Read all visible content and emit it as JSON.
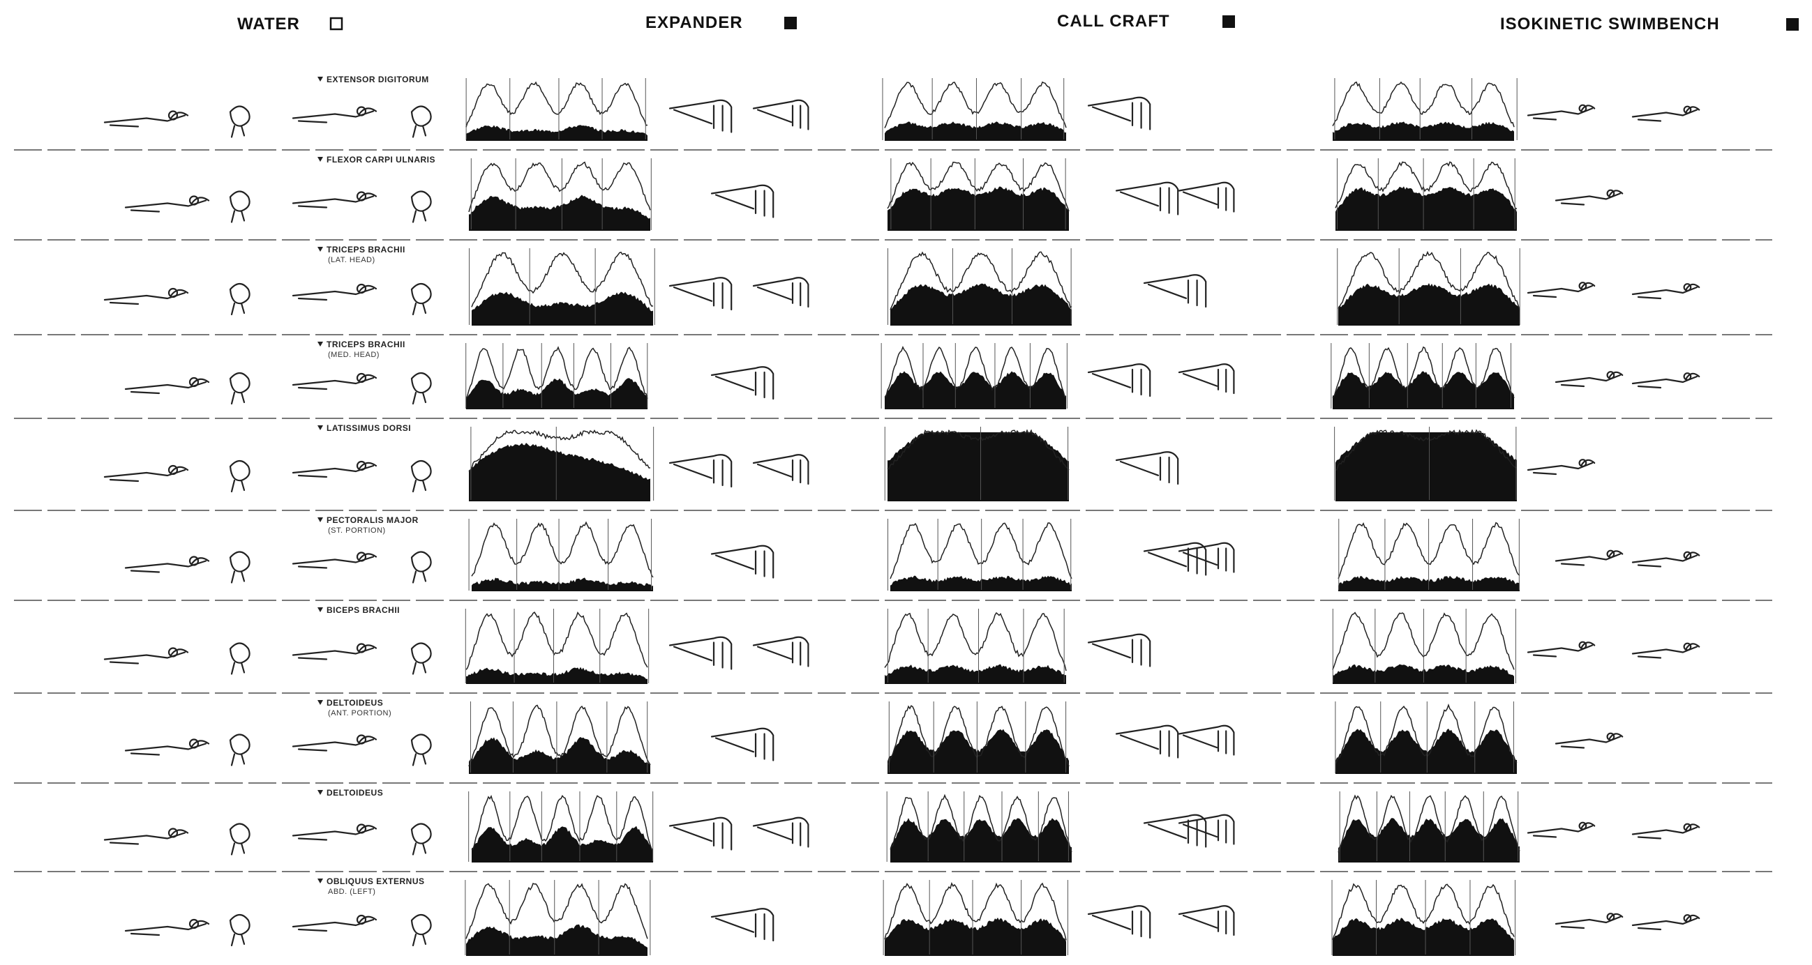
{
  "header": {
    "conditions": [
      "WATER",
      "EXPANDER",
      "CALL CRAFT",
      "ISOKINETIC SWIMBENCH"
    ]
  },
  "muscles": [
    {
      "name": "EXTENSOR DIGITORUM"
    },
    {
      "name": "FLEXOR CARPI ULNARIS"
    },
    {
      "name": "TRICEPS BRACHII",
      "sub": "(LAT. HEAD)"
    },
    {
      "name": "TRICEPS BRACHII",
      "sub": "(MED. HEAD)"
    },
    {
      "name": "LATISSIMUS DORSI"
    },
    {
      "name": "PECTORALIS MAJOR",
      "sub": "(ST. PORTION)"
    },
    {
      "name": "BICEPS BRACHII"
    },
    {
      "name": "DELTOIDEUS",
      "sub": "(ANT. PORTION)"
    },
    {
      "name": "DELTOIDEUS"
    },
    {
      "name": "OBLIQUUS EXTERNUS",
      "sub": "ABD. (LEFT)"
    }
  ]
}
